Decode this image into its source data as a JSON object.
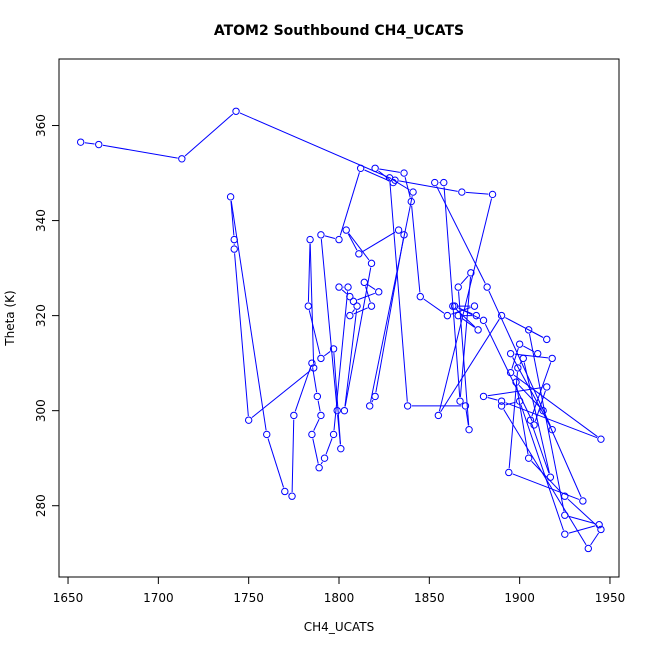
{
  "chart_data": {
    "type": "line",
    "title": "ATOM2 Southbound CH4_UCATS",
    "xlabel": "CH4_UCATS",
    "ylabel": "Theta (K)",
    "xlim": [
      1645,
      1955
    ],
    "ylim": [
      265,
      374
    ],
    "x_ticks": [
      1650,
      1700,
      1750,
      1800,
      1850,
      1900,
      1950
    ],
    "y_ticks": [
      280,
      300,
      320,
      340,
      360
    ],
    "grid": false,
    "line_color": "#0000ff",
    "marker": "open-circle",
    "series": [
      {
        "x": [
          1657,
          1667,
          1713,
          1743,
          1831,
          1868,
          1885,
          1855,
          1890,
          1915,
          1905,
          1925,
          1944,
          1925,
          1900,
          1890,
          1938,
          1945,
          1925,
          1905,
          1898,
          1913,
          1935,
          1894,
          1899,
          1902,
          1917,
          1906,
          1918,
          1895,
          1918,
          1882,
          1853,
          1858,
          1867,
          1873,
          1866,
          1872,
          1870,
          1838,
          1828,
          1841,
          1817,
          1820,
          1836,
          1833,
          1811,
          1804,
          1818,
          1803,
          1810,
          1806,
          1818,
          1814,
          1822,
          1808,
          1806,
          1800,
          1805,
          1797,
          1792,
          1789,
          1785,
          1790,
          1788,
          1785,
          1775,
          1774,
          1770,
          1760,
          1740,
          1742,
          1742,
          1750,
          1786,
          1784,
          1783,
          1790,
          1797,
          1801,
          1799,
          1790,
          1800,
          1812,
          1830,
          1820,
          1836,
          1840,
          1845,
          1860,
          1875,
          1863,
          1877,
          1866,
          1876,
          1864,
          1880,
          1908,
          1915,
          1880,
          1890,
          1945,
          1895,
          1900,
          1910
        ],
        "y": [
          356.5,
          356,
          353,
          363,
          348.5,
          346,
          345.5,
          299,
          320,
          315,
          317,
          278,
          276,
          274,
          302,
          301,
          271,
          275,
          282,
          290,
          306,
          300,
          281,
          287,
          309,
          311,
          286,
          298,
          311,
          312,
          296,
          326,
          348,
          348,
          302,
          329,
          326,
          296,
          301,
          301,
          349,
          346,
          301,
          303,
          337,
          338,
          333,
          338,
          331,
          300,
          322,
          320,
          322,
          327,
          325,
          323,
          324,
          326,
          326,
          295,
          290,
          288,
          295,
          299,
          303,
          310,
          299,
          282,
          283,
          295,
          345,
          336,
          334,
          298,
          309,
          336,
          322,
          311,
          313,
          292,
          300,
          337,
          336,
          351,
          348,
          351,
          350,
          344,
          324,
          320,
          322,
          322,
          317,
          320,
          320,
          322,
          319,
          297,
          305,
          303,
          302,
          294,
          308,
          314,
          312
        ]
      }
    ]
  }
}
